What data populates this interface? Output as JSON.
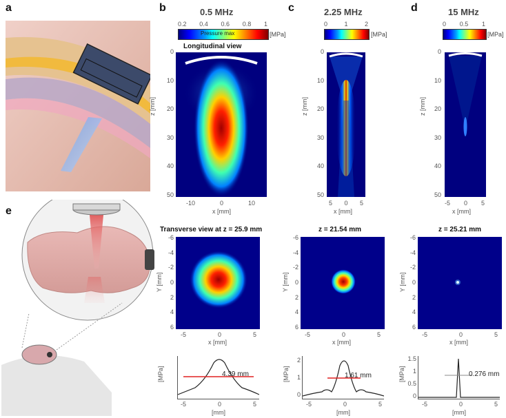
{
  "panel_labels": {
    "a": "a",
    "b": "b",
    "c": "c",
    "d": "d",
    "e": "e"
  },
  "columns": [
    {
      "freq": "0.5 MHz",
      "cbar_ticks": [
        "0.2",
        "0.4",
        "0.6",
        "0.8",
        "1"
      ],
      "cbar_unit": "[MPa]",
      "cbar_inner": "Pressure max",
      "long_title": "Longitudinal  view",
      "z_ticks": [
        "0",
        "10",
        "20",
        "30",
        "40",
        "50"
      ],
      "z_label": "z [mm]",
      "x_ticks": [
        "-10",
        "0",
        "10"
      ],
      "x_label": "x [mm]",
      "tv_title": "Transverse view at z = 25.9 mm",
      "y_ticks": [
        "-6",
        "-4",
        "-2",
        "0",
        "2",
        "4",
        "6"
      ],
      "y_label": "Y [mm]",
      "tvx_ticks": [
        "-5",
        "0",
        "5"
      ],
      "tvx_label": "x [mm]",
      "fwhm": "4.39 mm",
      "prof_ylabel": "[MPa]",
      "prof_x_ticks": [
        "-5",
        "0",
        "5"
      ],
      "prof_xlabel": "[mm]"
    },
    {
      "freq": "2.25 MHz",
      "cbar_ticks": [
        "0",
        "1",
        "2"
      ],
      "cbar_unit": "[MPa]",
      "z_ticks": [
        "0",
        "10",
        "20",
        "30",
        "40",
        "50"
      ],
      "z_label": "z [mm]",
      "x_ticks": [
        "5",
        "0",
        "5"
      ],
      "x_label": "x [mm]",
      "tv_title": "z = 21.54 mm",
      "y_ticks": [
        "-6",
        "-4",
        "-2",
        "0",
        "2",
        "4",
        "6"
      ],
      "y_label": "Y [mm]",
      "tvx_ticks": [
        "-5",
        "0",
        "5"
      ],
      "tvx_label": "x [mm]",
      "fwhm": "1.61 mm",
      "prof_yticks": [
        "2",
        "1",
        "0"
      ],
      "prof_ylabel": "[MPa]",
      "prof_x_ticks": [
        "-5",
        "0",
        "5"
      ],
      "prof_xlabel": "[mm]"
    },
    {
      "freq": "15 MHz",
      "cbar_ticks": [
        "0",
        "0.5",
        "1"
      ],
      "cbar_unit": "[MPa]",
      "z_ticks": [
        "0",
        "10",
        "20",
        "30",
        "40",
        "50"
      ],
      "z_label": "z [mm]",
      "x_ticks": [
        "-5",
        "0",
        "5"
      ],
      "x_label": "x [mm]",
      "tv_title": "z = 25.21 mm",
      "y_ticks": [
        "-6",
        "-4",
        "-2",
        "0",
        "2",
        "4",
        "6"
      ],
      "y_label": "Y [mm]",
      "tvx_ticks": [
        "-5",
        "0",
        "5"
      ],
      "tvx_label": "x [mm]",
      "fwhm": "0.276 mm",
      "prof_yticks": [
        "1.5",
        "1",
        "0.5",
        "0"
      ],
      "prof_ylabel": "[MPa]",
      "prof_x_ticks": [
        "-5",
        "0",
        "5"
      ],
      "prof_xlabel": "[mm]"
    }
  ],
  "colors": {
    "background": "#ffffff",
    "jet_low": "#00007f",
    "jet_high": "#7f0000",
    "fwhm_line": "#e02020",
    "tissue": "#e8b8b0",
    "transducer": "#3c4a6a"
  }
}
